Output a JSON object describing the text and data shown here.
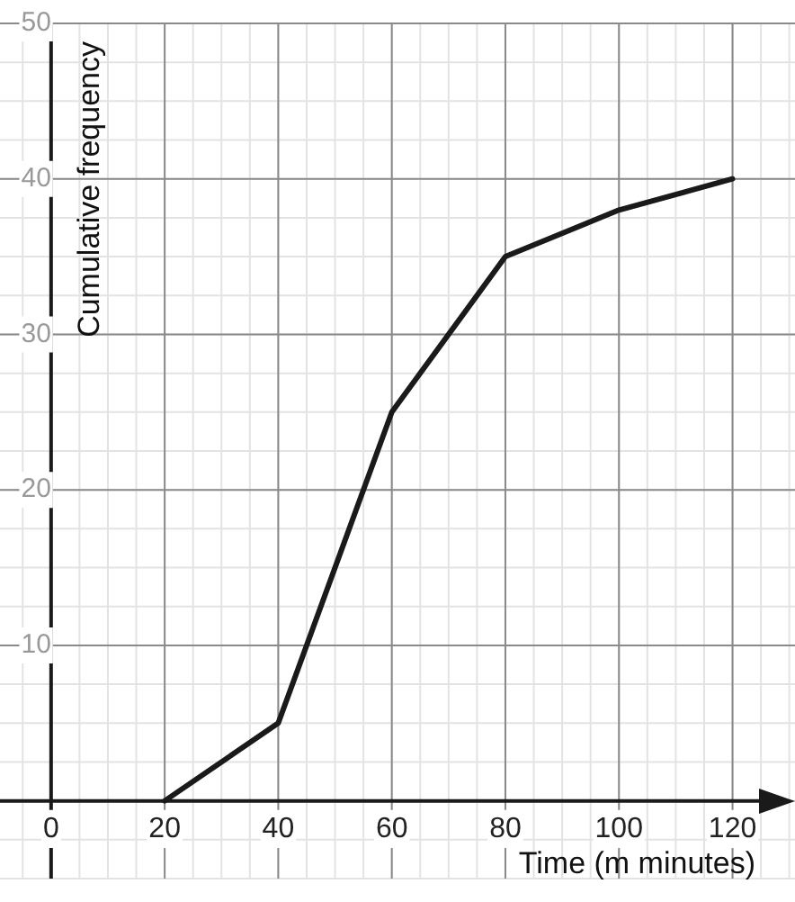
{
  "chart_data": {
    "type": "line",
    "xlabel": "Time (m minutes)",
    "ylabel": "Cumulative frequency",
    "x": [
      20,
      40,
      60,
      80,
      100,
      120
    ],
    "series": [
      {
        "color": "#1a1a1a",
        "values": [
          0,
          5,
          25,
          35,
          38,
          40
        ]
      }
    ],
    "xlim": [
      -9,
      131
    ],
    "ylim": [
      -5,
      50
    ],
    "xticks": [
      0,
      20,
      40,
      60,
      80,
      100,
      120
    ],
    "yticks": [
      10,
      20,
      30,
      40,
      50
    ],
    "grid": true,
    "marker": "none",
    "line_style": "solid"
  }
}
